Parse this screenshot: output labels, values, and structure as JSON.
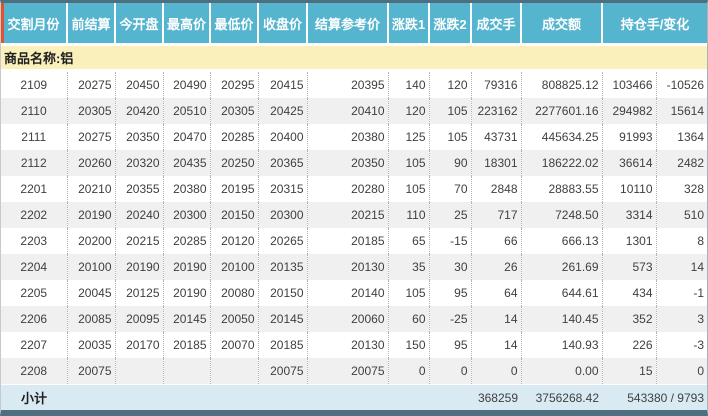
{
  "colors": {
    "header_bg": "#55b4ce",
    "header_text": "#ffffff",
    "band_bg": "#faf0bc",
    "subtotal_bg": "#d9eaf2",
    "row_bg": "#ffffff",
    "row_alt_bg": "#f0f0f0",
    "frame_border": "#4d6f80",
    "accent": "#e0512f",
    "text": "#3f3f3f"
  },
  "table": {
    "columns": [
      {
        "key": "delivery-month",
        "label": "交割月份"
      },
      {
        "key": "prev-settlement",
        "label": "前结算"
      },
      {
        "key": "open",
        "label": "今开盘"
      },
      {
        "key": "high",
        "label": "最高价"
      },
      {
        "key": "low",
        "label": "最低价"
      },
      {
        "key": "close",
        "label": "收盘价"
      },
      {
        "key": "settlement-ref",
        "label": "结算参考价"
      },
      {
        "key": "change1",
        "label": "涨跌1"
      },
      {
        "key": "change2",
        "label": "涨跌2"
      },
      {
        "key": "volume",
        "label": "成交手"
      },
      {
        "key": "turnover",
        "label": "成交额"
      },
      {
        "key": "open-interest-change",
        "label": "持仓手/变化"
      }
    ],
    "product_label": "商品名称:铝",
    "rows": [
      [
        "2109",
        "20275",
        "20450",
        "20490",
        "20295",
        "20415",
        "20395",
        "140",
        "120",
        "79316",
        "808825.12",
        "103466",
        "-10526"
      ],
      [
        "2110",
        "20305",
        "20420",
        "20510",
        "20305",
        "20425",
        "20410",
        "120",
        "105",
        "223162",
        "2277601.16",
        "294982",
        "15614"
      ],
      [
        "2111",
        "20275",
        "20350",
        "20470",
        "20285",
        "20400",
        "20380",
        "125",
        "105",
        "43731",
        "445634.25",
        "91993",
        "1364"
      ],
      [
        "2112",
        "20260",
        "20320",
        "20435",
        "20250",
        "20365",
        "20350",
        "105",
        "90",
        "18301",
        "186222.02",
        "36614",
        "2482"
      ],
      [
        "2201",
        "20210",
        "20355",
        "20380",
        "20195",
        "20315",
        "20280",
        "105",
        "70",
        "2848",
        "28883.55",
        "10110",
        "328"
      ],
      [
        "2202",
        "20190",
        "20240",
        "20300",
        "20150",
        "20300",
        "20215",
        "110",
        "25",
        "717",
        "7248.50",
        "3314",
        "510"
      ],
      [
        "2203",
        "20200",
        "20215",
        "20285",
        "20120",
        "20265",
        "20185",
        "65",
        "-15",
        "66",
        "666.13",
        "1301",
        "8"
      ],
      [
        "2204",
        "20100",
        "20190",
        "20190",
        "20100",
        "20135",
        "20130",
        "35",
        "30",
        "26",
        "261.69",
        "573",
        "14"
      ],
      [
        "2205",
        "20045",
        "20125",
        "20190",
        "20080",
        "20150",
        "20140",
        "105",
        "95",
        "64",
        "644.61",
        "434",
        "-1"
      ],
      [
        "2206",
        "20085",
        "20095",
        "20145",
        "20050",
        "20145",
        "20060",
        "60",
        "-25",
        "14",
        "140.45",
        "352",
        "3"
      ],
      [
        "2207",
        "20035",
        "20170",
        "20185",
        "20070",
        "20185",
        "20130",
        "150",
        "95",
        "14",
        "140.93",
        "226",
        "-3"
      ],
      [
        "2208",
        "20075",
        "",
        "",
        "",
        "20075",
        "20075",
        "0",
        "0",
        "0",
        "0.00",
        "15",
        "0"
      ]
    ],
    "subtotal": {
      "label": "小计",
      "volume": "368259",
      "turnover": "3756268.42",
      "open_interest_change": "543380 / 9793"
    }
  }
}
